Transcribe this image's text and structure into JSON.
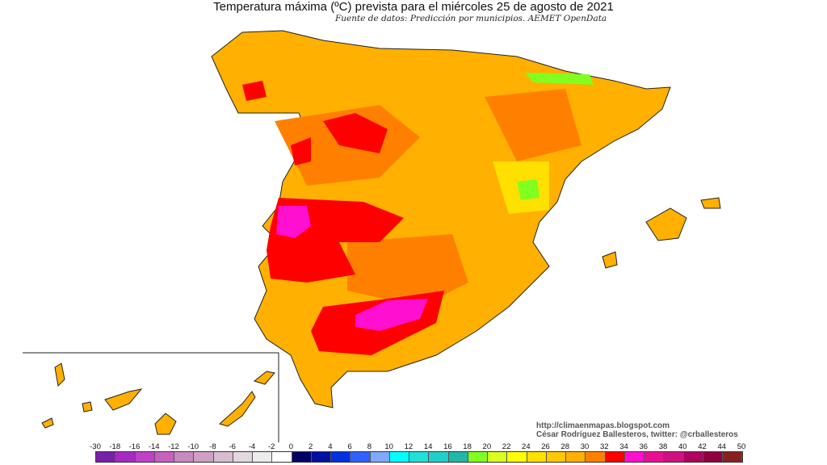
{
  "title": "Temperatura máxima (ºC) prevista para el miércoles 25 de agosto de 2021",
  "subtitle": "Fuente de datos: Predicción por municipios. AEMET OpenData",
  "credits": {
    "url": "http://climaenmapas.blogspot.com",
    "author": "César Rodríguez Ballesteros, twitter: @crballesteros"
  },
  "legend": {
    "labels": [
      "-30",
      "-18",
      "-16",
      "-14",
      "-12",
      "-10",
      "-8",
      "-6",
      "-4",
      "-2",
      "0",
      "2",
      "4",
      "6",
      "8",
      "10",
      "12",
      "14",
      "16",
      "18",
      "20",
      "22",
      "24",
      "26",
      "28",
      "30",
      "32",
      "34",
      "36",
      "38",
      "40",
      "42",
      "44",
      "50"
    ],
    "colors": [
      "#7a1fa8",
      "#a52bc0",
      "#c040c8",
      "#c860c0",
      "#c888c0",
      "#d0a0c4",
      "#d8bcd0",
      "#e4d8e0",
      "#ececec",
      "#ffffff",
      "#000066",
      "#0010a0",
      "#0030e0",
      "#3060ff",
      "#80a8ff",
      "#00ffff",
      "#20e0d8",
      "#20d0c8",
      "#20b8a8",
      "#80ff20",
      "#d8ff20",
      "#ffff00",
      "#ffe000",
      "#ffc800",
      "#ffb000",
      "#ff8000",
      "#ff0000",
      "#ff10d0",
      "#e81090",
      "#d01080",
      "#b00060",
      "#900040",
      "#882020"
    ]
  },
  "map_colors": {
    "base": "#ffb000",
    "warm": "#ff8000",
    "hot": "#ff0000",
    "very_hot": "#ff10d0",
    "mild": "#ffe000",
    "cool": "#80ff20"
  }
}
